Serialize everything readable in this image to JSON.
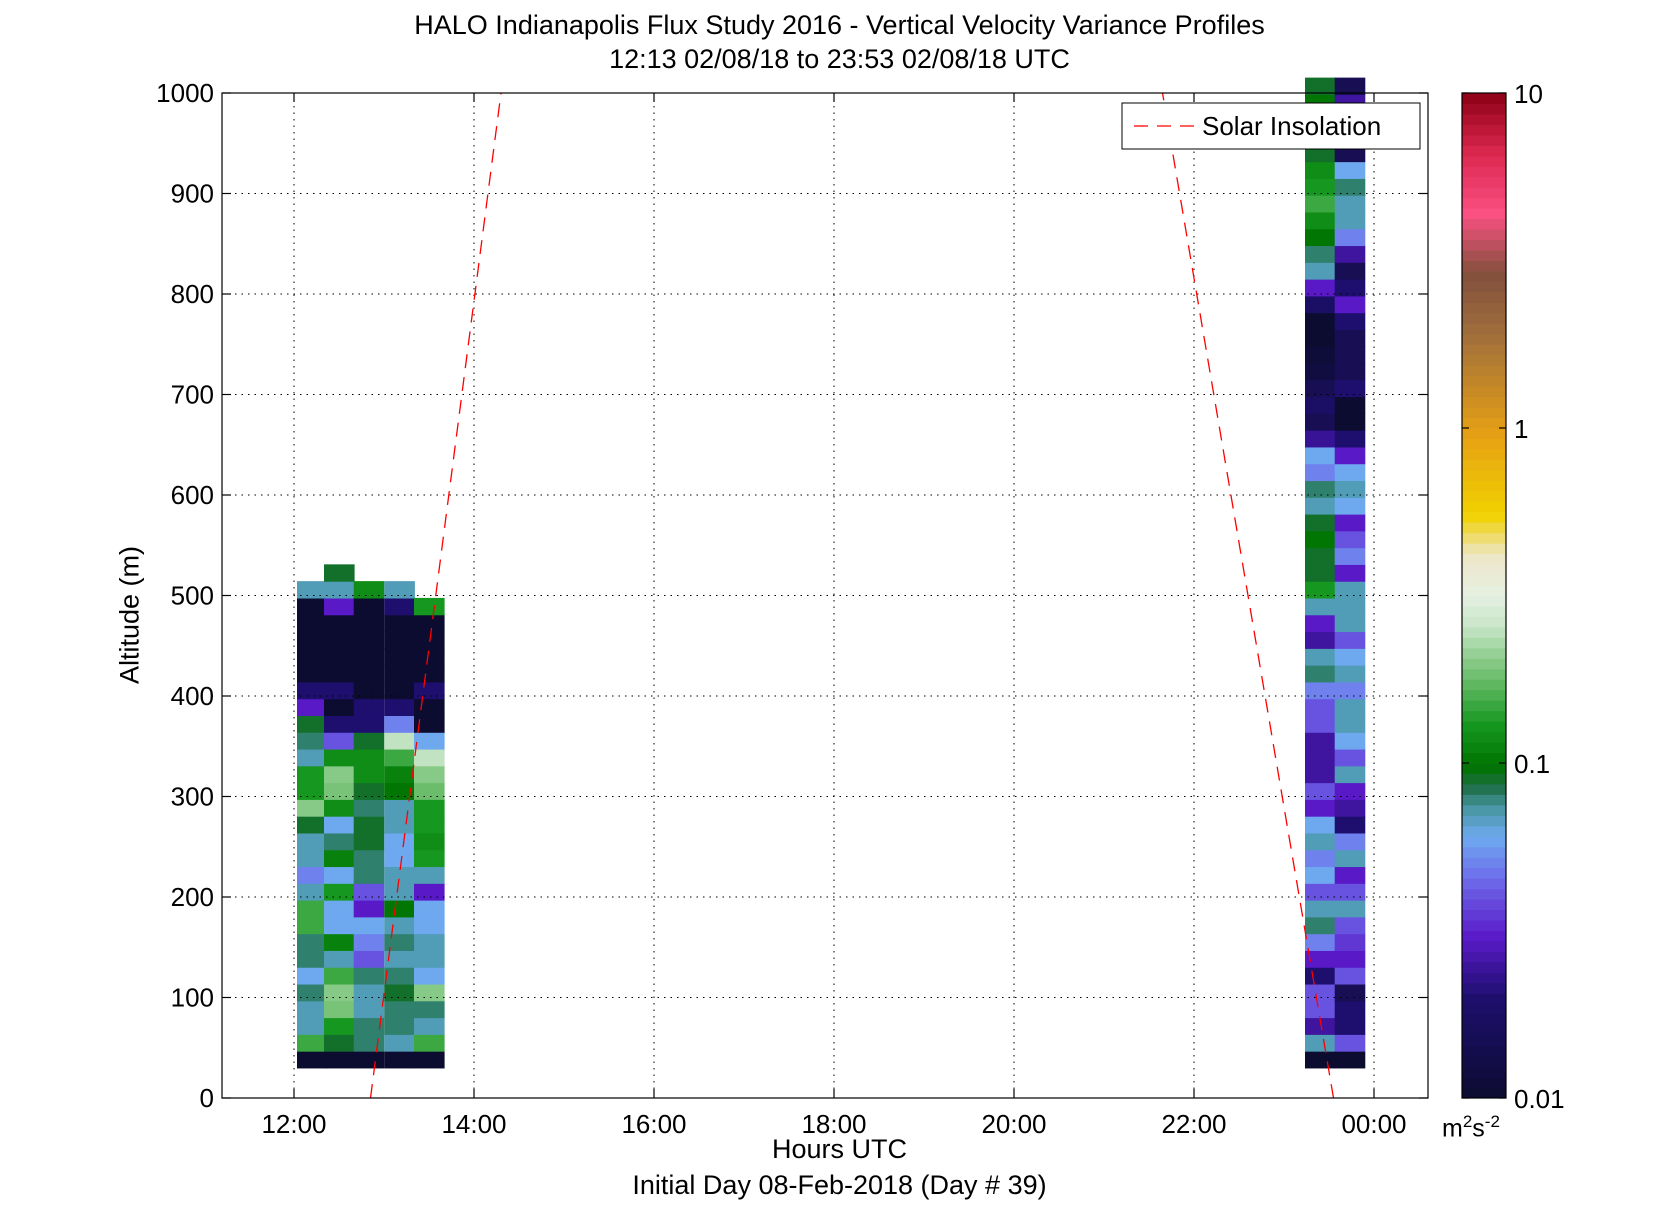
{
  "chart_data": {
    "type": "heatmap",
    "title": "HALO Indianapolis Flux Study 2016 - Vertical Velocity Variance Profiles",
    "subtitle": "12:13 02/08/18 to 23:53 02/08/18  UTC",
    "xlabel": "Hours UTC",
    "xlabel_sub": "Initial Day 08-Feb-2018 (Day # 39)",
    "ylabel": "Altitude (m)",
    "xlim": [
      11.2,
      24.6
    ],
    "ylim": [
      0,
      1000
    ],
    "xticks": [
      12,
      14,
      16,
      18,
      20,
      22,
      24
    ],
    "xtick_labels": [
      "12:00",
      "14:00",
      "16:00",
      "18:00",
      "20:00",
      "22:00",
      "00:00"
    ],
    "yticks": [
      0,
      100,
      200,
      300,
      400,
      500,
      600,
      700,
      800,
      900,
      1000
    ],
    "ytick_labels": [
      "0",
      "100",
      "200",
      "300",
      "400",
      "500",
      "600",
      "700",
      "800",
      "900",
      "1000"
    ],
    "grid": true,
    "legend": {
      "position": "top-right",
      "entries": [
        "Solar Insolation"
      ]
    },
    "solar_insolation": {
      "color": "#ff0000",
      "style": "dashed",
      "rising": [
        [
          12.85,
          0
        ],
        [
          14.3,
          1000
        ]
      ],
      "setting": [
        [
          23.55,
          0
        ],
        [
          21.65,
          1000
        ]
      ]
    },
    "colorbar": {
      "scale": "log",
      "range": [
        0.01,
        10
      ],
      "tick_values": [
        0.01,
        0.1,
        1,
        10
      ],
      "tick_labels": [
        "0.01",
        "0.1",
        "1",
        "10"
      ],
      "units": "m2s-2",
      "units_base": "m",
      "units_exp1": "2",
      "units_mid": "s",
      "units_exp2": "-2"
    },
    "bin_height_m": 16.7,
    "columns": [
      {
        "time": 12.2,
        "z0": 30,
        "n": 29,
        "v": [
          0.01,
          0.15,
          0.07,
          0.07,
          0.08,
          0.06,
          0.08,
          0.08,
          0.15,
          0.15,
          0.07,
          0.05,
          0.07,
          0.07,
          0.09,
          0.2,
          0.13,
          0.13,
          0.07,
          0.08,
          0.09,
          0.03,
          0.02,
          0.01,
          0.01,
          0.01,
          0.01,
          0.01,
          0.07
        ]
      },
      {
        "time": 12.5,
        "z0": 30,
        "n": 30,
        "v": [
          0.01,
          0.09,
          0.13,
          0.19,
          0.2,
          0.15,
          0.07,
          0.11,
          0.06,
          0.06,
          0.13,
          0.06,
          0.11,
          0.08,
          0.06,
          0.12,
          0.19,
          0.2,
          0.12,
          0.04,
          0.02,
          0.01,
          0.02,
          0.01,
          0.01,
          0.01,
          0.01,
          0.03,
          0.07,
          0.09
        ]
      },
      {
        "time": 12.83,
        "z0": 30,
        "n": 29,
        "v": [
          0.01,
          0.08,
          0.08,
          0.07,
          0.07,
          0.08,
          0.04,
          0.05,
          0.06,
          0.03,
          0.04,
          0.08,
          0.08,
          0.09,
          0.09,
          0.08,
          0.09,
          0.12,
          0.12,
          0.09,
          0.02,
          0.02,
          0.01,
          0.01,
          0.01,
          0.01,
          0.01,
          0.01,
          0.12
        ]
      },
      {
        "time": 13.17,
        "z0": 30,
        "n": 29,
        "v": [
          0.01,
          0.07,
          0.08,
          0.08,
          0.09,
          0.08,
          0.07,
          0.08,
          0.07,
          0.1,
          0.07,
          0.07,
          0.06,
          0.06,
          0.07,
          0.07,
          0.1,
          0.11,
          0.15,
          0.25,
          0.05,
          0.02,
          0.01,
          0.01,
          0.01,
          0.01,
          0.01,
          0.02,
          0.07
        ]
      },
      {
        "time": 13.5,
        "z0": 30,
        "n": 28,
        "v": [
          0.01,
          0.15,
          0.07,
          0.08,
          0.2,
          0.06,
          0.07,
          0.07,
          0.06,
          0.06,
          0.03,
          0.07,
          0.13,
          0.12,
          0.13,
          0.13,
          0.18,
          0.2,
          0.25,
          0.06,
          0.01,
          0.01,
          0.02,
          0.01,
          0.01,
          0.01,
          0.01,
          0.13
        ]
      },
      {
        "time": 23.4,
        "z0": 30,
        "n": 59,
        "v": [
          0.01,
          0.07,
          0.025,
          0.04,
          0.04,
          0.02,
          0.03,
          0.05,
          0.08,
          0.07,
          0.04,
          0.06,
          0.05,
          0.07,
          0.06,
          0.03,
          0.04,
          0.025,
          0.025,
          0.025,
          0.04,
          0.04,
          0.05,
          0.08,
          0.07,
          0.025,
          0.03,
          0.07,
          0.13,
          0.09,
          0.09,
          0.1,
          0.09,
          0.07,
          0.08,
          0.05,
          0.06,
          0.024,
          0.015,
          0.018,
          0.015,
          0.012,
          0.011,
          0.01,
          0.01,
          0.018,
          0.03,
          0.07,
          0.08,
          0.1,
          0.12,
          0.15,
          0.13,
          0.12,
          0.09,
          0.05,
          0.09,
          0.1,
          0.09
        ]
      },
      {
        "time": 23.73,
        "z0": 30,
        "n": 59,
        "v": [
          0.01,
          0.04,
          0.02,
          0.02,
          0.015,
          0.04,
          0.03,
          0.035,
          0.04,
          0.07,
          0.04,
          0.03,
          0.07,
          0.05,
          0.02,
          0.025,
          0.03,
          0.07,
          0.04,
          0.06,
          0.07,
          0.07,
          0.05,
          0.07,
          0.06,
          0.04,
          0.07,
          0.07,
          0.07,
          0.03,
          0.05,
          0.04,
          0.03,
          0.06,
          0.07,
          0.06,
          0.03,
          0.02,
          0.01,
          0.01,
          0.02,
          0.015,
          0.015,
          0.015,
          0.02,
          0.03,
          0.02,
          0.015,
          0.025,
          0.05,
          0.07,
          0.07,
          0.08,
          0.06,
          0.015,
          0.02,
          0.07,
          0.025,
          0.015
        ]
      }
    ]
  }
}
